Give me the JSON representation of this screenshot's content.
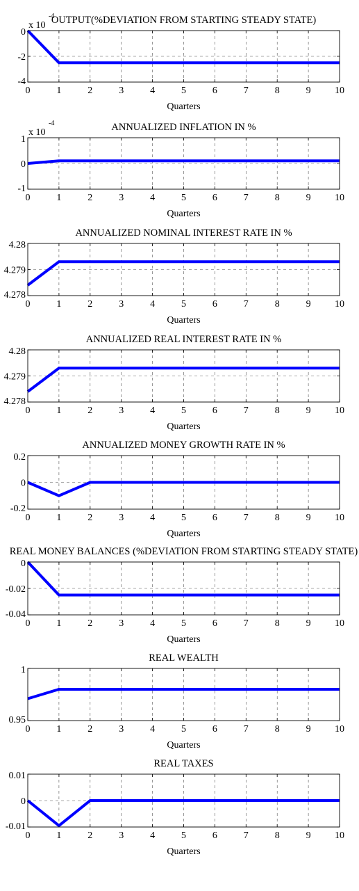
{
  "colors": {
    "series": "#0000ff",
    "axis": "#000000",
    "grid": "#555555",
    "background": "#ffffff"
  },
  "chart_data": [
    {
      "type": "line",
      "title": "OUTPUT(%DEVIATION FROM STARTING STEADY STATE)",
      "xlabel": "Quarters",
      "ylabel": "",
      "x": [
        0,
        1,
        2,
        3,
        4,
        5,
        6,
        7,
        8,
        9,
        10
      ],
      "xlim": [
        0,
        10
      ],
      "ylim": [
        -4,
        0
      ],
      "yticks": [
        0,
        -2,
        -4
      ],
      "ytick_labels": [
        "0",
        "-2",
        "-4"
      ],
      "y_exponent": {
        "base": "x 10",
        "power": "-4"
      },
      "grid": true,
      "series": [
        {
          "values": [
            0,
            -2.5,
            -2.5,
            -2.5,
            -2.5,
            -2.5,
            -2.5,
            -2.5,
            -2.5,
            -2.5,
            -2.5
          ]
        }
      ]
    },
    {
      "type": "line",
      "title": "ANNUALIZED INFLATION IN %",
      "xlabel": "Quarters",
      "ylabel": "",
      "x": [
        0,
        1,
        2,
        3,
        4,
        5,
        6,
        7,
        8,
        9,
        10
      ],
      "xlim": [
        0,
        10
      ],
      "ylim": [
        -1,
        1
      ],
      "yticks": [
        1,
        0,
        -1
      ],
      "ytick_labels": [
        "1",
        "0",
        "-1"
      ],
      "y_exponent": {
        "base": "x 10",
        "power": "-4"
      },
      "grid": true,
      "series": [
        {
          "values": [
            0,
            0.1,
            0.1,
            0.1,
            0.1,
            0.1,
            0.1,
            0.1,
            0.1,
            0.1,
            0.1
          ]
        }
      ]
    },
    {
      "type": "line",
      "title": "ANNUALIZED NOMINAL INTEREST RATE IN %",
      "xlabel": "Quarters",
      "ylabel": "",
      "x": [
        0,
        1,
        2,
        3,
        4,
        5,
        6,
        7,
        8,
        9,
        10
      ],
      "xlim": [
        0,
        10
      ],
      "ylim": [
        4.278,
        4.28
      ],
      "yticks": [
        4.28,
        4.279,
        4.278
      ],
      "ytick_labels": [
        "4.28",
        "4.279",
        "4.278"
      ],
      "grid": true,
      "series": [
        {
          "values": [
            4.2784,
            4.2793,
            4.2793,
            4.2793,
            4.2793,
            4.2793,
            4.2793,
            4.2793,
            4.2793,
            4.2793,
            4.2793
          ]
        }
      ]
    },
    {
      "type": "line",
      "title": "ANNUALIZED REAL INTEREST RATE IN %",
      "xlabel": "Quarters",
      "ylabel": "",
      "x": [
        0,
        1,
        2,
        3,
        4,
        5,
        6,
        7,
        8,
        9,
        10
      ],
      "xlim": [
        0,
        10
      ],
      "ylim": [
        4.278,
        4.28
      ],
      "yticks": [
        4.28,
        4.279,
        4.278
      ],
      "ytick_labels": [
        "4.28",
        "4.279",
        "4.278"
      ],
      "grid": true,
      "series": [
        {
          "values": [
            4.2784,
            4.2793,
            4.2793,
            4.2793,
            4.2793,
            4.2793,
            4.2793,
            4.2793,
            4.2793,
            4.2793,
            4.2793
          ]
        }
      ]
    },
    {
      "type": "line",
      "title": "ANNUALIZED MONEY GROWTH RATE IN %",
      "xlabel": "Quarters",
      "ylabel": "",
      "x": [
        0,
        1,
        2,
        3,
        4,
        5,
        6,
        7,
        8,
        9,
        10
      ],
      "xlim": [
        0,
        10
      ],
      "ylim": [
        -0.2,
        0.2
      ],
      "yticks": [
        0.2,
        0,
        -0.2
      ],
      "ytick_labels": [
        "0.2",
        "0",
        "-0.2"
      ],
      "grid": true,
      "series": [
        {
          "values": [
            0,
            -0.1,
            0,
            0,
            0,
            0,
            0,
            0,
            0,
            0,
            0
          ]
        }
      ]
    },
    {
      "type": "line",
      "title": "REAL MONEY BALANCES (%DEVIATION FROM STARTING STEADY STATE)",
      "xlabel": "Quarters",
      "ylabel": "",
      "x": [
        0,
        1,
        2,
        3,
        4,
        5,
        6,
        7,
        8,
        9,
        10
      ],
      "xlim": [
        0,
        10
      ],
      "ylim": [
        -0.04,
        0
      ],
      "yticks": [
        0,
        -0.02,
        -0.04
      ],
      "ytick_labels": [
        "0",
        "-0.02",
        "-0.04"
      ],
      "grid": true,
      "series": [
        {
          "values": [
            0,
            -0.025,
            -0.025,
            -0.025,
            -0.025,
            -0.025,
            -0.025,
            -0.025,
            -0.025,
            -0.025,
            -0.025
          ]
        }
      ]
    },
    {
      "type": "line",
      "title": "REAL WEALTH",
      "xlabel": "Quarters",
      "ylabel": "",
      "x": [
        0,
        1,
        2,
        3,
        4,
        5,
        6,
        7,
        8,
        9,
        10
      ],
      "xlim": [
        0,
        10
      ],
      "ylim": [
        0.95,
        1
      ],
      "yticks": [
        1,
        0.95
      ],
      "ytick_labels": [
        "1",
        "0.95"
      ],
      "grid": true,
      "series": [
        {
          "values": [
            0.971,
            0.98,
            0.98,
            0.98,
            0.98,
            0.98,
            0.98,
            0.98,
            0.98,
            0.98,
            0.98
          ]
        }
      ]
    },
    {
      "type": "line",
      "title": "REAL TAXES",
      "xlabel": "Quarters",
      "ylabel": "",
      "x": [
        0,
        1,
        2,
        3,
        4,
        5,
        6,
        7,
        8,
        9,
        10
      ],
      "xlim": [
        0,
        10
      ],
      "ylim": [
        -0.01,
        0.01
      ],
      "yticks": [
        0.01,
        0,
        -0.01
      ],
      "ytick_labels": [
        "0.01",
        "0",
        "-0.01"
      ],
      "grid": true,
      "series": [
        {
          "values": [
            0,
            -0.0095,
            0,
            0,
            0,
            0,
            0,
            0,
            0,
            0,
            0
          ]
        }
      ]
    }
  ]
}
